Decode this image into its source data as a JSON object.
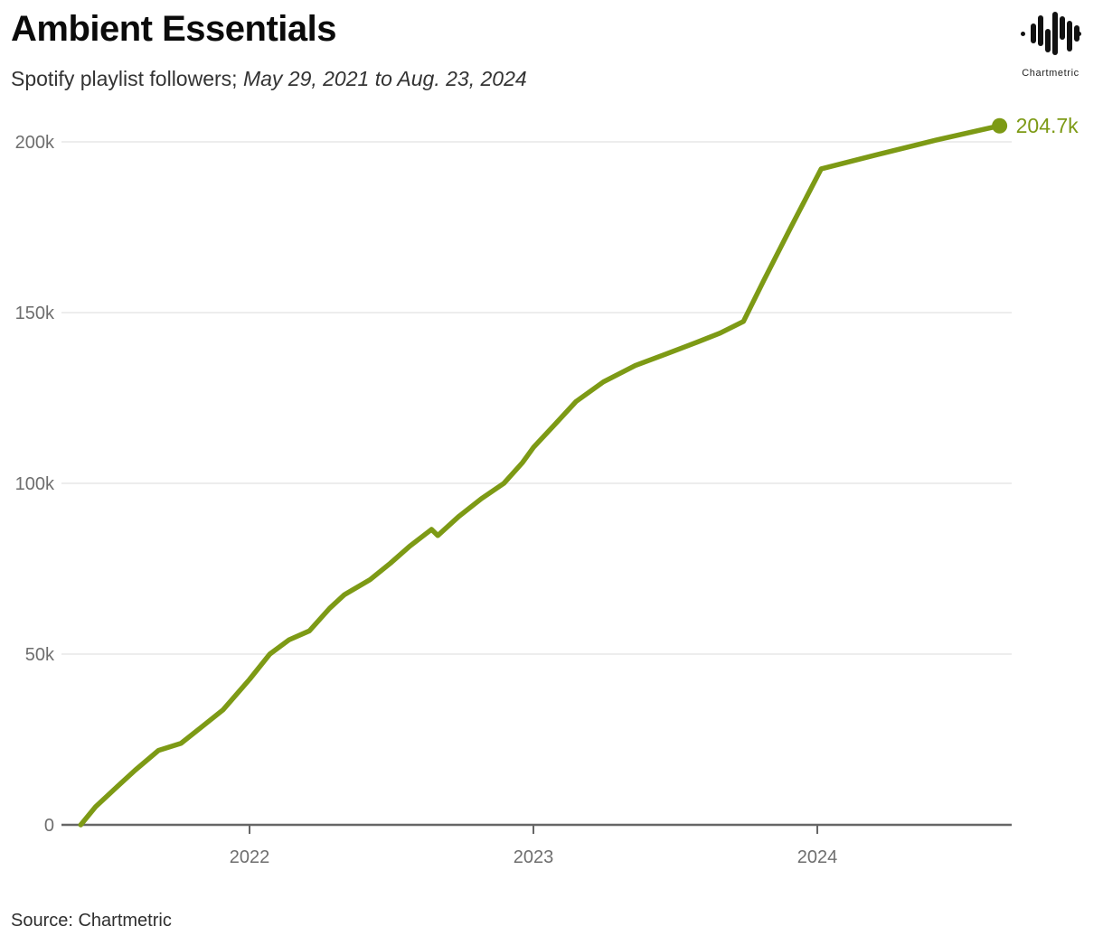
{
  "header": {
    "title": "Ambient Essentials",
    "subtitle_plain": "Spotify playlist followers; ",
    "subtitle_italic": "May 29, 2021 to Aug. 23, 2024"
  },
  "logo": {
    "icon": "chartmetric-waveform-icon",
    "caption": "Chartmetric"
  },
  "source": {
    "label": "Source: Chartmetric"
  },
  "colors": {
    "line": "#7D9A15",
    "end_label": "#7D9A15",
    "grid": "#E7E7E7",
    "axis": "#666666",
    "tick_label": "#6E6E6E"
  },
  "chart_data": {
    "type": "line",
    "title": "Ambient Essentials",
    "subtitle": "Spotify playlist followers; May 29, 2021 to Aug. 23, 2024",
    "series_name": "Spotify playlist followers",
    "unit": "thousands of followers",
    "grid": "horizontal",
    "legend_position": "none",
    "ylim": [
      0,
      210
    ],
    "y_tick_values": [
      0,
      50,
      100,
      150,
      200
    ],
    "y_tick_labels": [
      "0",
      "50k",
      "100k",
      "150k",
      "200k"
    ],
    "x_tick_years": [
      2022,
      2023,
      2024
    ],
    "x_tick_labels": [
      "2022",
      "2023",
      "2024"
    ],
    "end_label": "204.7k",
    "points": [
      [
        "2021-05-29",
        0
      ],
      [
        "2021-06-17",
        5.3
      ],
      [
        "2021-07-13",
        10.8
      ],
      [
        "2021-08-07",
        16.0
      ],
      [
        "2021-09-06",
        21.8
      ],
      [
        "2021-10-05",
        23.9
      ],
      [
        "2021-10-30",
        28.4
      ],
      [
        "2021-11-28",
        33.7
      ],
      [
        "2022-01-01",
        42.6
      ],
      [
        "2022-01-27",
        50.0
      ],
      [
        "2022-02-21",
        54.2
      ],
      [
        "2022-03-19",
        56.8
      ],
      [
        "2022-04-14",
        63.4
      ],
      [
        "2022-05-03",
        67.4
      ],
      [
        "2022-06-05",
        71.8
      ],
      [
        "2022-07-01",
        76.6
      ],
      [
        "2022-07-26",
        81.6
      ],
      [
        "2022-08-23",
        86.5
      ],
      [
        "2022-08-31",
        84.7
      ],
      [
        "2022-09-27",
        90.3
      ],
      [
        "2022-10-26",
        95.5
      ],
      [
        "2022-11-24",
        100.0
      ],
      [
        "2022-12-18",
        106.1
      ],
      [
        "2023-01-01",
        110.5
      ],
      [
        "2023-01-28",
        117.1
      ],
      [
        "2023-02-25",
        124.0
      ],
      [
        "2023-04-01",
        129.7
      ],
      [
        "2023-05-12",
        134.5
      ],
      [
        "2023-06-21",
        137.9
      ],
      [
        "2023-07-28",
        141.1
      ],
      [
        "2023-08-29",
        144.0
      ],
      [
        "2023-09-28",
        147.4
      ],
      [
        "2023-10-24",
        159.3
      ],
      [
        "2023-11-28",
        175.0
      ],
      [
        "2024-01-06",
        192.1
      ],
      [
        "2024-03-17",
        196.2
      ],
      [
        "2024-06-02",
        200.5
      ],
      [
        "2024-08-23",
        204.7
      ]
    ]
  }
}
